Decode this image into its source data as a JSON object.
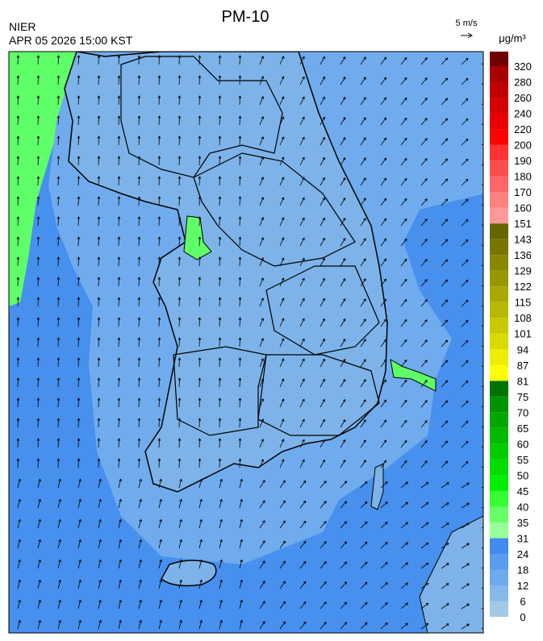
{
  "header": {
    "title": "PM-10",
    "agency": "NIER",
    "timestamp": "APR 05 2026 15:00 KST"
  },
  "wind_scale": {
    "label": "5 m/s"
  },
  "colorbar": {
    "unit": "μg/m³",
    "ticks": [
      0,
      6,
      12,
      18,
      24,
      31,
      35,
      40,
      45,
      50,
      55,
      60,
      65,
      70,
      75,
      81,
      87,
      94,
      101,
      108,
      115,
      122,
      129,
      136,
      143,
      151,
      160,
      170,
      180,
      190,
      200,
      220,
      240,
      260,
      280,
      320
    ],
    "colors": [
      "#a3c9e6",
      "#86b9ea",
      "#6eaaed",
      "#5a9cee",
      "#3f8bf0",
      "#99ff99",
      "#66ff66",
      "#33ff33",
      "#00ee00",
      "#00dd00",
      "#00cc00",
      "#00bb00",
      "#00a800",
      "#009400",
      "#007400",
      "#ffff00",
      "#eded00",
      "#dada00",
      "#c9c900",
      "#b8b800",
      "#a8a800",
      "#979700",
      "#878700",
      "#767600",
      "#666600",
      "#ff9999",
      "#ff8080",
      "#ff6666",
      "#ff4d4d",
      "#ff3333",
      "#ff0000",
      "#ea0000",
      "#d50000",
      "#c00000",
      "#a80000",
      "#700000"
    ]
  }
}
